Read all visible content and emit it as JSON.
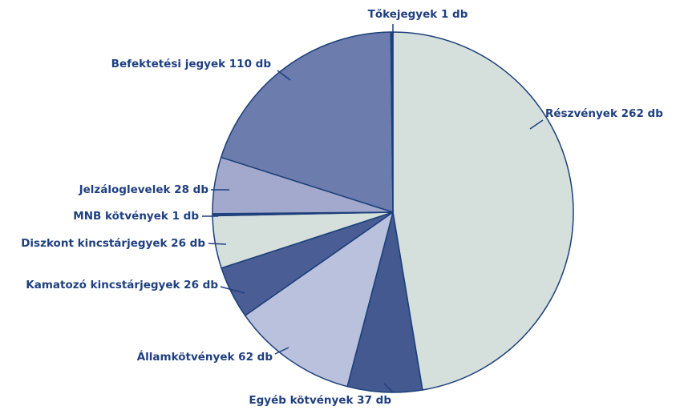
{
  "chart_data": {
    "type": "pie",
    "categories": [
      "Részvények",
      "Egyéb kötvények",
      "Államkötvények",
      "Kamatozó kincstárjegyek",
      "Diszkont kincstárjegyek",
      "MNB kötvények",
      "Jelzáloglevelek",
      "Befektetési jegyek",
      "Tőkejegyek"
    ],
    "values": [
      262,
      37,
      62,
      26,
      26,
      1,
      28,
      110,
      1
    ],
    "value_labels": [
      "262 db",
      "37 db",
      "62 db",
      "26 db",
      "26 db",
      "1 db",
      "28 db",
      "110 db",
      "1 db"
    ],
    "colors": [
      "#d5dfdc",
      "#43598f",
      "#b9c1dc",
      "#4a5d95",
      "#d5dfdc",
      "#2a4a8a",
      "#a2a9cd",
      "#6b7cad",
      "#1f3f7f"
    ]
  }
}
